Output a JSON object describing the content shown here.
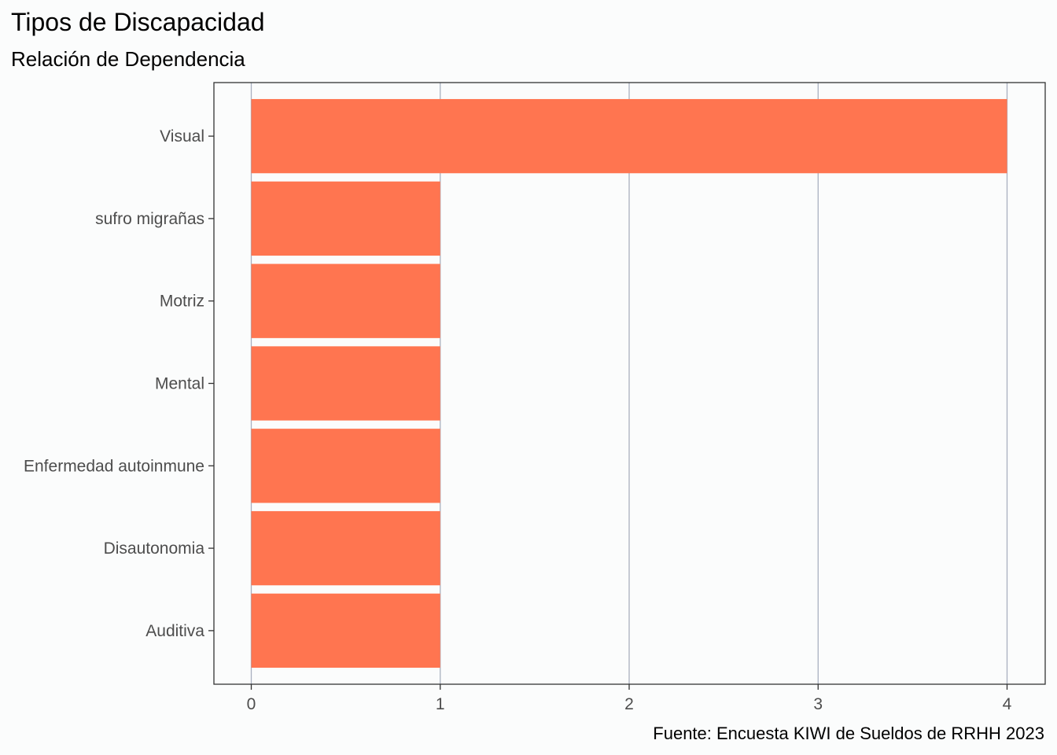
{
  "chart_data": {
    "type": "bar",
    "orientation": "horizontal",
    "title": "Tipos de Discapacidad",
    "subtitle": "Relación de Dependencia",
    "caption": "Fuente: Encuesta KIWI de Sueldos de RRHH 2023",
    "categories": [
      "Visual",
      "sufro migrañas",
      "Motriz",
      "Mental",
      "Enfermedad autoinmune",
      "Disautonomia",
      "Auditiva"
    ],
    "values": [
      4,
      1,
      1,
      1,
      1,
      1,
      1
    ],
    "x_ticks": [
      "0",
      "1",
      "2",
      "3",
      "4"
    ],
    "xlim": [
      0,
      4
    ],
    "xlabel": "",
    "ylabel": "",
    "grid": "vertical",
    "bar_color": "#ff7550"
  }
}
